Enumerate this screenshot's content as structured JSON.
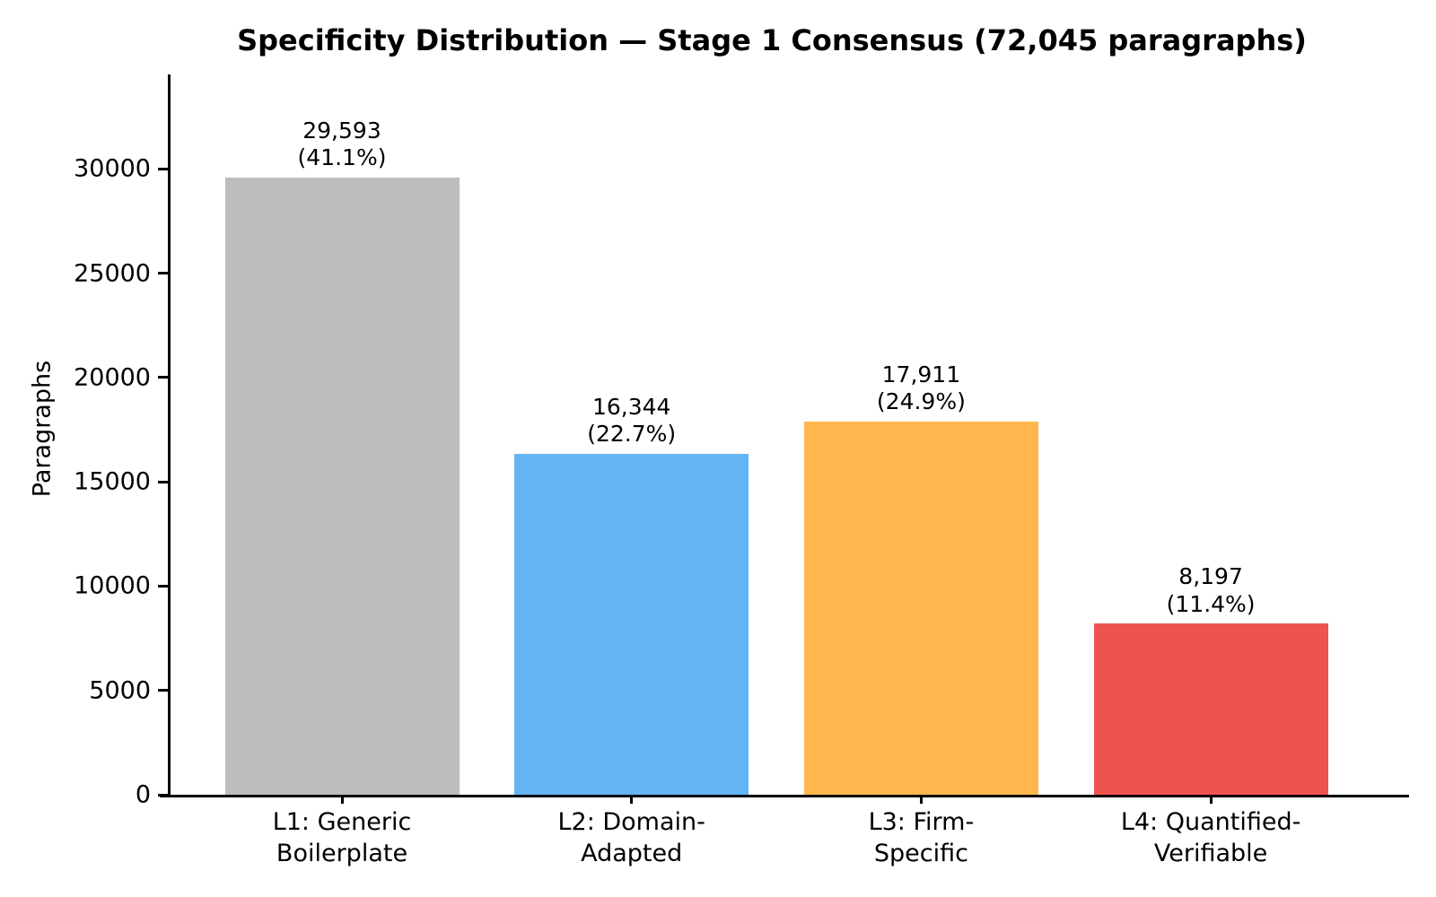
{
  "chart_data": {
    "type": "bar",
    "title": "Specificity Distribution — Stage 1 Consensus (72,045 paragraphs)",
    "xlabel": "",
    "ylabel": "Paragraphs",
    "total_paragraphs": "72,045",
    "categories": [
      "L1: Generic Boilerplate",
      "L2: Domain-Adapted",
      "L3: Firm-Specific",
      "L4: Quantified-Verifiable"
    ],
    "category_lines": [
      [
        "L1: Generic",
        "Boilerplate"
      ],
      [
        "L2: Domain-",
        "Adapted"
      ],
      [
        "L3: Firm-",
        "Specific"
      ],
      [
        "L4: Quantified-",
        "Verifiable"
      ]
    ],
    "levels": [
      "L1",
      "L2",
      "L3",
      "L4"
    ],
    "values": [
      29593,
      16344,
      17911,
      8197
    ],
    "percentages": [
      41.1,
      22.7,
      24.9,
      11.4
    ],
    "value_label_lines": [
      [
        "29,593",
        "(41.1%)"
      ],
      [
        "16,344",
        "(22.7%)"
      ],
      [
        "17,911",
        "(24.9%)"
      ],
      [
        "8,197",
        "(11.4%)"
      ]
    ],
    "colors": [
      "#bdbdbd",
      "#64b5f6",
      "#ffb74d",
      "#ef5350"
    ],
    "axis_color": "#000000",
    "background_color": "#ffffff",
    "yticks": [
      0,
      5000,
      10000,
      15000,
      20000,
      25000,
      30000
    ],
    "ytick_labels": [
      "0",
      "5000",
      "10000",
      "15000",
      "20000",
      "25000",
      "30000"
    ],
    "ylim": [
      0,
      34450
    ],
    "grid": false,
    "legend": null
  }
}
